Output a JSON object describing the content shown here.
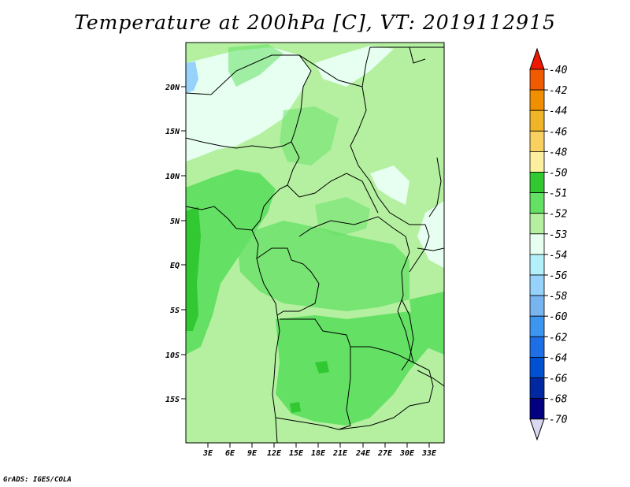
{
  "title": "Temperature at 200hPa [C], VT: 2019112915",
  "credit": "GrADS: IGES/COLA",
  "map": {
    "lat_labels": [
      "20N",
      "15N",
      "10N",
      "5N",
      "EQ",
      "5S",
      "10S",
      "15S"
    ],
    "lon_labels": [
      "3E",
      "6E",
      "9E",
      "12E",
      "15E",
      "18E",
      "21E",
      "24E",
      "27E",
      "30E",
      "33E"
    ],
    "lat_range": [
      -20,
      25
    ],
    "lon_range": [
      0,
      35
    ]
  },
  "legend": {
    "levels": [
      "-40",
      "-42",
      "-44",
      "-46",
      "-48",
      "-50",
      "-51",
      "-52",
      "-53",
      "-54",
      "-56",
      "-58",
      "-60",
      "-62",
      "-64",
      "-66",
      "-68",
      "-70"
    ],
    "colors": [
      "#f01800",
      "#f05a00",
      "#f09000",
      "#f0b428",
      "#f8d060",
      "#fcf0a0",
      "#32c832",
      "#64e064",
      "#b4f0a0",
      "#e6fff0",
      "#b4f0fa",
      "#96d2fa",
      "#78b4f0",
      "#3c96f0",
      "#1e6ee6",
      "#0050d2",
      "#0028a0",
      "#000080",
      "#d8d8f0"
    ],
    "top_color": "#f01800",
    "bottom_color": "#d8d8f0"
  }
}
